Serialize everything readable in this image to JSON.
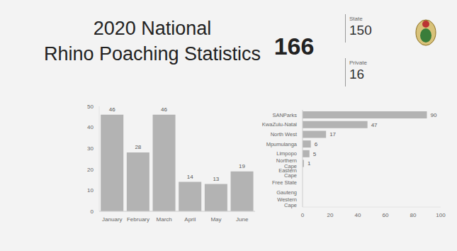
{
  "title": [
    "2020 National",
    "Rhino Poaching Statistics"
  ],
  "total": 166,
  "breakdown": [
    {
      "label": "State",
      "value": 150
    },
    {
      "label": "Private",
      "value": 16
    }
  ],
  "chart_data": [
    {
      "type": "bar",
      "categories": [
        "January",
        "February",
        "March",
        "April",
        "May",
        "June"
      ],
      "values": [
        46,
        28,
        46,
        14,
        13,
        19
      ],
      "color": "#b3b3b3",
      "ylim": [
        0,
        50
      ],
      "yticks": [
        0,
        10,
        20,
        30,
        40,
        50
      ],
      "grid": false,
      "data_labels": true
    },
    {
      "type": "bar",
      "orientation": "horizontal",
      "categories": [
        "SANParks",
        "KwaZulu-Natal",
        "North West",
        "Mpumulanga",
        "Limpopo",
        "Northern Cape",
        "Eastern Cape",
        "Free State",
        "Gauteng",
        "Western Cape"
      ],
      "values": [
        90,
        47,
        17,
        6,
        5,
        1,
        0,
        0,
        0,
        0
      ],
      "color": "#b3b3b3",
      "xlim": [
        0,
        100
      ],
      "xticks": [
        0,
        20,
        40,
        60,
        80,
        100
      ],
      "grid": false,
      "data_labels": true
    }
  ]
}
